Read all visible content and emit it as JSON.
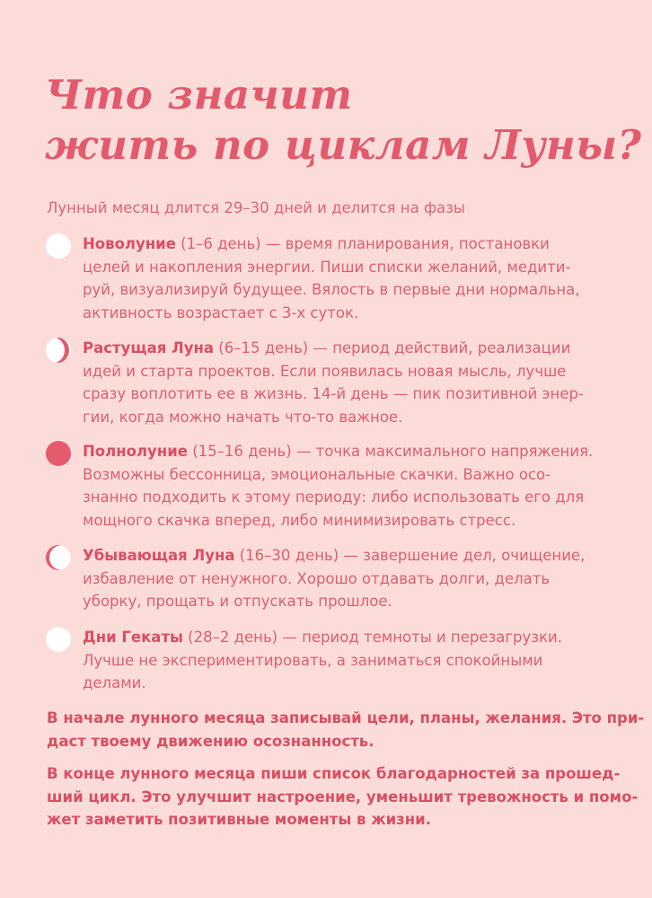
{
  "title": [
    "Что значит",
    "жить по циклам Луны?"
  ],
  "intro": "Лунный месяц длится 29–30 дней и делится на фазы",
  "phases": [
    {
      "icon": "new-moon-icon",
      "name": "Новолуние",
      "first": " (1–6 день) — время планирования, постановки",
      "lines": [
        "целей и накопления энергии. Пиши списки желаний, медити-",
        "руй, визуализируй будущее. Вялость в первые дни нормальна,",
        "активность возрастает с 3-х суток."
      ]
    },
    {
      "icon": "waxing-moon-icon",
      "name": "Растущая Луна",
      "first": " (6–15 день) — период действий, реализации",
      "lines": [
        "идей и старта проектов. Если появилась новая мысль, лучше",
        "сразу воплотить ее в жизнь. 14-й день — пик позитивной энер-",
        "гии, когда можно начать что-то важное."
      ]
    },
    {
      "icon": "full-moon-icon",
      "name": "Полнолуние",
      "first": " (15–16 день) — точка максимального напряжения.",
      "lines": [
        "Возможны бессонница, эмоциональные скачки. Важно осо-",
        "знанно подходить к этому периоду: либо использовать его для",
        "мощного скачка вперед, либо минимизировать стресс."
      ]
    },
    {
      "icon": "waning-moon-icon",
      "name": "Убывающая Луна",
      "first": " (16–30 день) — завершение дел, очищение,",
      "lines": [
        "избавление от ненужного. Хорошо отдавать долги, делать",
        "уборку, прощать и отпускать прошлое."
      ]
    },
    {
      "icon": "dark-moon-icon",
      "name": "Дни Гекаты",
      "first": " (28–2 день) — период темноты и перезагрузки.",
      "lines": [
        "Лучше не экспериментировать, а заниматься спокойными",
        "делами."
      ]
    }
  ],
  "notes": [
    [
      "В начале лунного месяца записывай цели, планы, желания. Это при-",
      "даст твоему движению осознанность."
    ],
    [
      "В конце лунного месяца пиши список благодарностей за прошед-",
      "ший цикл. Это улучшит настроение, уменьшит тревожность и помо-",
      "жет заметить позитивные моменты в жизни."
    ]
  ]
}
